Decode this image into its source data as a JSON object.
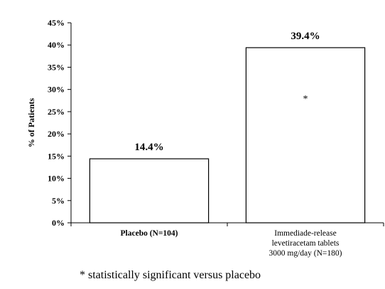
{
  "chart_data": {
    "type": "bar",
    "categories": [
      [
        "Placebo (N=104)"
      ],
      [
        "Immediade-release",
        "levetiracetam tablets",
        "3000 mg/day (N=180)"
      ]
    ],
    "values": [
      14.4,
      39.4
    ],
    "data_labels": [
      "14.4%",
      "39.4%"
    ],
    "title": "",
    "xlabel": "",
    "ylabel": "% of Patients",
    "ylim": [
      0,
      45
    ],
    "yticks": [
      0,
      5,
      10,
      15,
      20,
      25,
      30,
      35,
      40,
      45
    ],
    "ytick_labels": [
      "0%",
      "5%",
      "10%",
      "15%",
      "20%",
      "25%",
      "30%",
      "35%",
      "40%",
      "45%"
    ],
    "grid": false,
    "bar_fill": "#ffffff",
    "bar_stroke": "#000000",
    "significance": [
      null,
      "*"
    ]
  },
  "footnote": "* statistically significant versus placebo"
}
